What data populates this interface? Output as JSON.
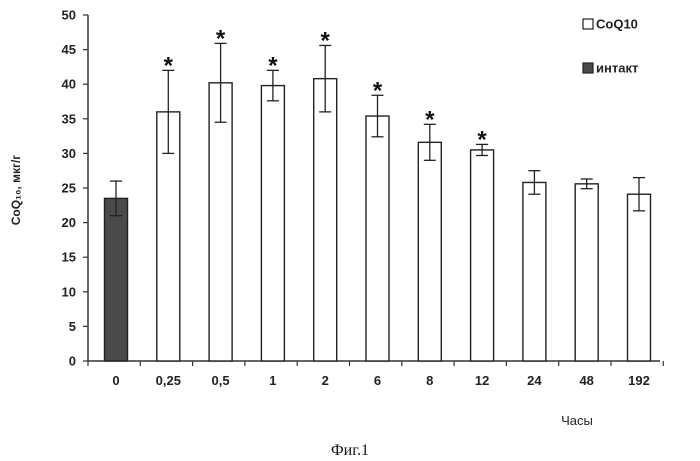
{
  "chart_data": {
    "type": "bar",
    "categories": [
      "0",
      "0,25",
      "0,5",
      "1",
      "2",
      "6",
      "8",
      "12",
      "24",
      "48",
      "192"
    ],
    "values": [
      23.5,
      36.0,
      40.2,
      39.8,
      40.8,
      35.4,
      31.6,
      30.5,
      25.8,
      25.6,
      24.1
    ],
    "errors": [
      2.5,
      6.0,
      5.7,
      2.2,
      4.8,
      3.0,
      2.6,
      0.8,
      1.7,
      0.7,
      2.4
    ],
    "significant": [
      false,
      true,
      true,
      true,
      true,
      true,
      true,
      true,
      false,
      false,
      false
    ],
    "significance_marker": "*",
    "series_of_bar": [
      "интакт",
      "CoQ10",
      "CoQ10",
      "CoQ10",
      "CoQ10",
      "CoQ10",
      "CoQ10",
      "CoQ10",
      "CoQ10",
      "CoQ10",
      "CoQ10"
    ],
    "legend": [
      {
        "label": "CoQ10",
        "color": "#ffffff"
      },
      {
        "label": "интакт",
        "color": "#4a4a4a"
      }
    ],
    "legend_position": "top-right",
    "xlabel": "Часы",
    "ylabel": "CoQ₁₀, мкг/г",
    "ylim": [
      0,
      50
    ],
    "yticks": [
      0,
      5,
      10,
      15,
      20,
      25,
      30,
      35,
      40,
      45,
      50
    ],
    "grid": false
  },
  "caption": "Фиг.1"
}
